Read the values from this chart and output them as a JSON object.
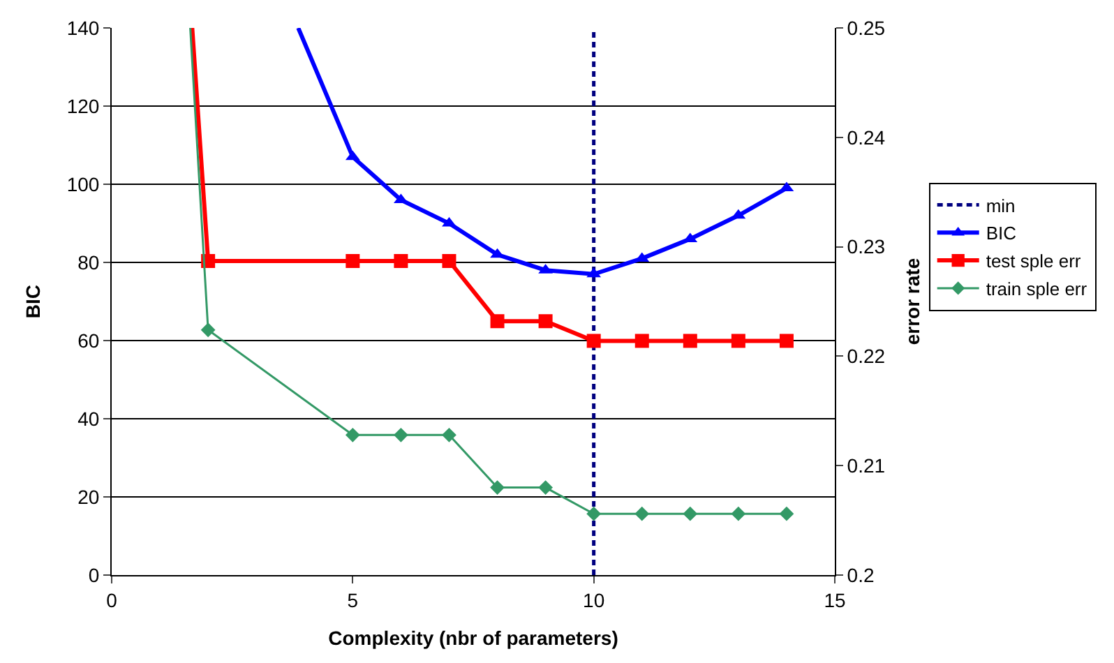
{
  "chart_data": {
    "type": "line",
    "xlabel": "Complexity (nbr of parameters)",
    "ylabel": "BIC",
    "y2label": "error rate",
    "xlim": [
      0,
      15
    ],
    "xticks": [
      0,
      5,
      10,
      15
    ],
    "ylim": [
      0,
      140
    ],
    "yticks": [
      0,
      20,
      40,
      60,
      80,
      100,
      120,
      140
    ],
    "y2lim": [
      0.2,
      0.25
    ],
    "y2ticks": [
      0.2,
      0.21,
      0.22,
      0.23,
      0.24,
      0.25
    ],
    "grid": "y",
    "legend": "right",
    "series": [
      {
        "name": "min",
        "color": "#000080",
        "marker": "none",
        "line_style": "dashed",
        "x": [
          10,
          10
        ],
        "values": [
          0,
          140
        ]
      },
      {
        "name": "BIC",
        "color": "#0000ff",
        "marker": "triangle",
        "x": [
          3.87,
          5,
          6,
          7,
          8,
          9,
          10,
          11,
          12,
          13,
          14
        ],
        "values": [
          140,
          107,
          96,
          90,
          82,
          78,
          77,
          81,
          86,
          92,
          99
        ]
      },
      {
        "name": "test sple err",
        "color": "#ff0000",
        "marker": "square",
        "axis": "y2",
        "x": [
          1.67,
          2,
          5,
          6,
          7,
          8,
          9,
          10,
          11,
          12,
          13,
          14
        ],
        "values": [
          0.25,
          0.2287,
          0.2287,
          0.2287,
          0.2287,
          0.2232,
          0.2232,
          0.2214,
          0.2214,
          0.2214,
          0.2214,
          0.2214
        ]
      },
      {
        "name": "train sple err",
        "color": "#339966",
        "marker": "diamond",
        "axis": "y2",
        "x": [
          1.63,
          2,
          5,
          6,
          7,
          8,
          9,
          10,
          11,
          12,
          13,
          14
        ],
        "values": [
          0.25,
          0.2224,
          0.2128,
          0.2128,
          0.2128,
          0.208,
          0.208,
          0.2056,
          0.2056,
          0.2056,
          0.2056,
          0.2056
        ]
      }
    ]
  }
}
